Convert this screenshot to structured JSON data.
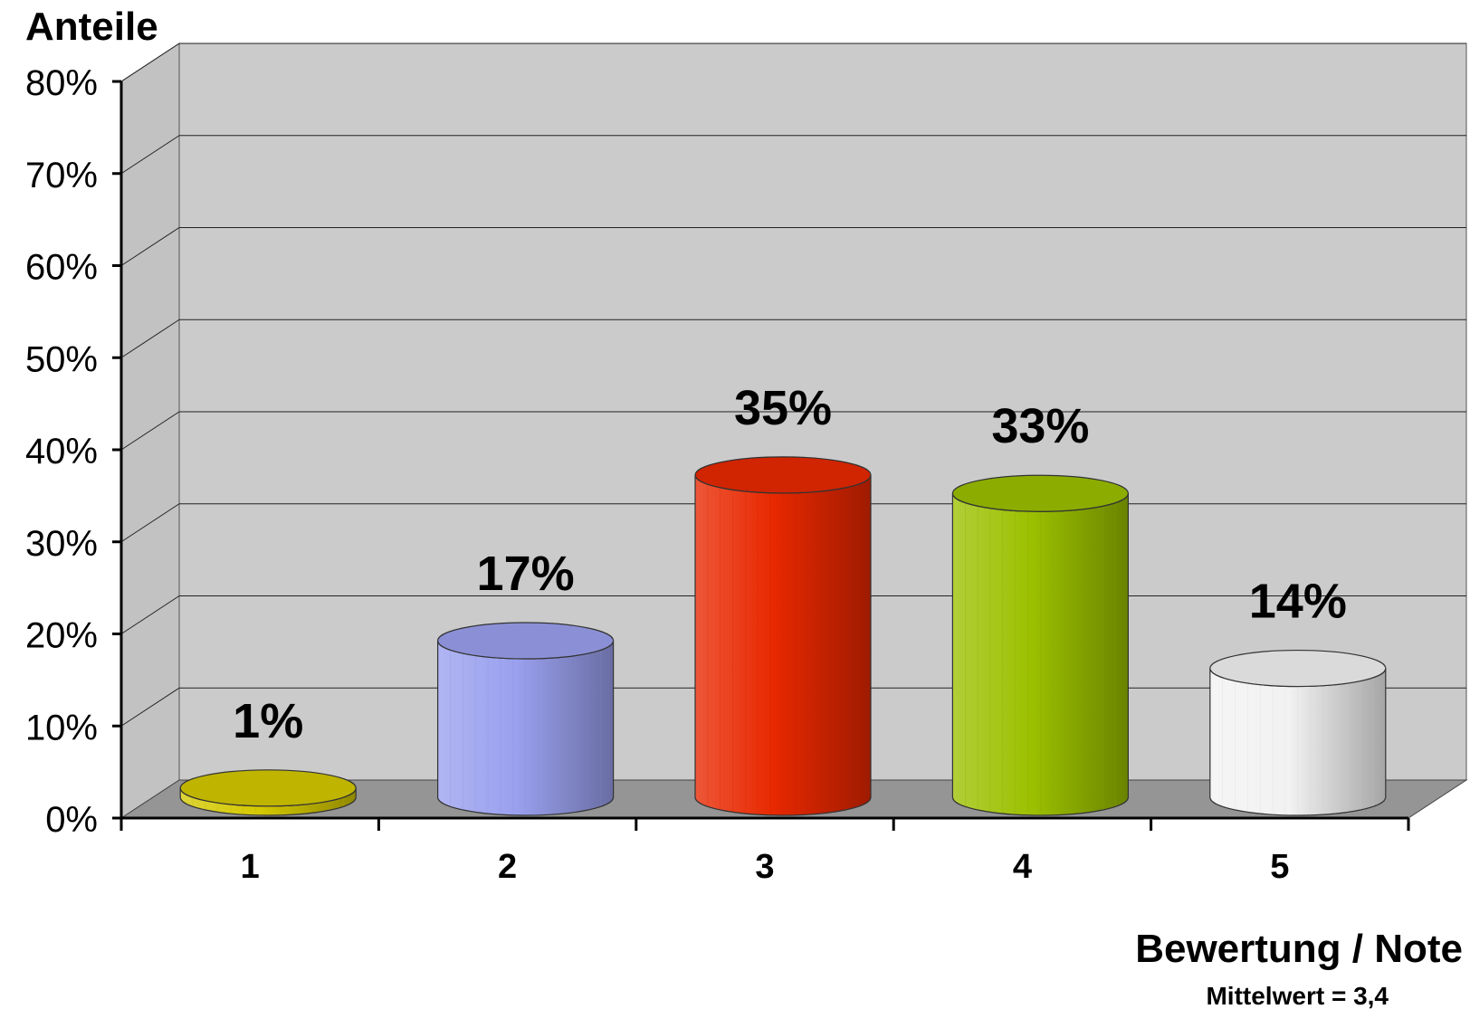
{
  "chart_data": {
    "type": "bar",
    "ylabel": "Anteile",
    "xlabel": "Bewertung / Note",
    "subtitle": "Mittelwert = 3,4",
    "categories": [
      "1",
      "2",
      "3",
      "4",
      "5"
    ],
    "values": [
      1,
      17,
      35,
      33,
      14
    ],
    "value_labels": [
      "1%",
      "17%",
      "35%",
      "33%",
      "14%"
    ],
    "colors": [
      "#d4c800",
      "#9aa0ee",
      "#e82800",
      "#9cc000",
      "#f2f2f2"
    ],
    "ylim": [
      0,
      80
    ],
    "yticks": [
      0,
      10,
      20,
      30,
      40,
      50,
      60,
      70,
      80
    ],
    "ytick_labels": [
      "0%",
      "10%",
      "20%",
      "30%",
      "40%",
      "50%",
      "60%",
      "70%",
      "80%"
    ],
    "grid": true,
    "legend": "none",
    "style": "3d-cylinder"
  }
}
